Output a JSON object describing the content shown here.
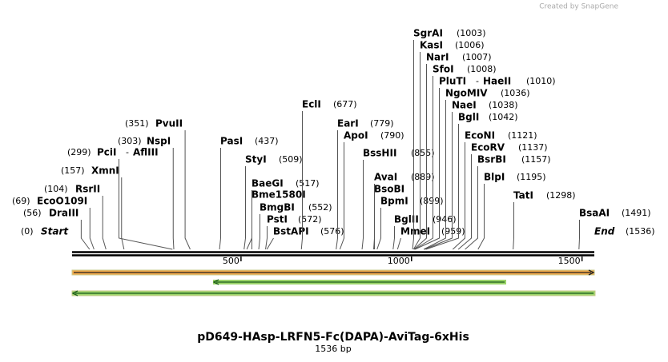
{
  "header": {
    "credit": "Created by SnapGene"
  },
  "map": {
    "title": "pD649-HAsp-LRFN5-Fc(DAPA)-AviTag-6xHis",
    "length_label": "1536 bp",
    "length": 1536,
    "ticks": [
      500,
      1000,
      1500
    ],
    "sites": [
      {
        "name": "Start",
        "position": 0,
        "label": "(0)"
      },
      {
        "name": "DraIII",
        "position": 56,
        "label": "(56)"
      },
      {
        "name": "EcoO109I",
        "position": 69,
        "label": "(69)"
      },
      {
        "name": "RsrII",
        "position": 104,
        "label": "(104)"
      },
      {
        "name": "XmnI",
        "position": 157,
        "label": "(157)"
      },
      {
        "name": "PciI",
        "separator": "-",
        "name2": "AflIII",
        "position": 299,
        "label": "(299)"
      },
      {
        "name": "NspI",
        "position": 303,
        "label": "(303)"
      },
      {
        "name": "PvuII",
        "position": 351,
        "label": "(351)"
      },
      {
        "name": "PasI",
        "position": 437,
        "label": "(437)"
      },
      {
        "name": "StyI",
        "position": 509,
        "label": "(509)"
      },
      {
        "name": "BaeGI",
        "position": 517,
        "label": "(517)"
      },
      {
        "name": "Bme1580I"
      },
      {
        "name": "BmgBI",
        "position": 552,
        "label": "(552)"
      },
      {
        "name": "PstI",
        "position": 572,
        "label": "(572)"
      },
      {
        "name": "BstAPI",
        "position": 576,
        "label": "(576)"
      },
      {
        "name": "EclI",
        "position": 677,
        "label": "(677)"
      },
      {
        "name": "EarI",
        "position": 779,
        "label": "(779)"
      },
      {
        "name": "ApoI",
        "position": 790,
        "label": "(790)"
      },
      {
        "name": "BssHII",
        "position": 855,
        "label": "(855)"
      },
      {
        "name": "AvaI",
        "position": 889,
        "label": "(889)"
      },
      {
        "name": "BsoBI"
      },
      {
        "name": "BpmI",
        "position": 899,
        "label": "(899)"
      },
      {
        "name": "BglII",
        "position": 946,
        "label": "(946)"
      },
      {
        "name": "MmeI",
        "position": 959,
        "label": "(959)"
      },
      {
        "name": "SgrAI",
        "position": 1003,
        "label": "(1003)"
      },
      {
        "name": "KasI",
        "position": 1006,
        "label": "(1006)"
      },
      {
        "name": "NarI",
        "position": 1007,
        "label": "(1007)"
      },
      {
        "name": "SfoI",
        "position": 1008,
        "label": "(1008)"
      },
      {
        "name": "PluTI",
        "separator": "-",
        "name2": "HaeII",
        "position": 1010,
        "label": "(1010)"
      },
      {
        "name": "NgoMIV",
        "position": 1036,
        "label": "(1036)"
      },
      {
        "name": "NaeI",
        "position": 1038,
        "label": "(1038)"
      },
      {
        "name": "BglI",
        "position": 1042,
        "label": "(1042)"
      },
      {
        "name": "EcoNI",
        "position": 1121,
        "label": "(1121)"
      },
      {
        "name": "EcoRV",
        "position": 1137,
        "label": "(1137)"
      },
      {
        "name": "BsrBI",
        "position": 1157,
        "label": "(1157)"
      },
      {
        "name": "BlpI",
        "position": 1195,
        "label": "(1195)"
      },
      {
        "name": "TatI",
        "position": 1298,
        "label": "(1298)"
      },
      {
        "name": "BsaAI",
        "position": 1491,
        "label": "(1491)"
      },
      {
        "name": "End",
        "position": 1536,
        "label": "(1536)"
      }
    ]
  }
}
